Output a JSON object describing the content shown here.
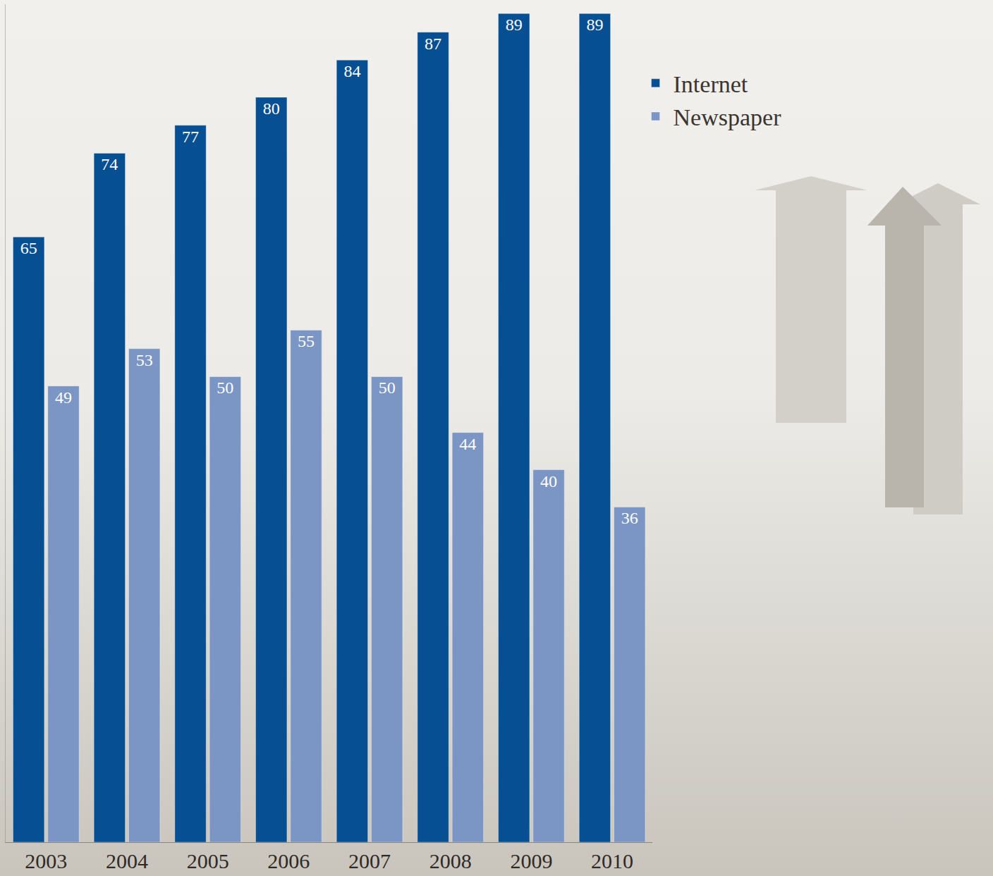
{
  "chart_data": {
    "type": "bar",
    "categories": [
      "2003",
      "2004",
      "2005",
      "2006",
      "2007",
      "2008",
      "2009",
      "2010"
    ],
    "series": [
      {
        "name": "Internet",
        "color": "#064f93",
        "values": [
          65,
          74,
          77,
          80,
          84,
          87,
          89,
          89
        ]
      },
      {
        "name": "Newspaper",
        "color": "#7b96c4",
        "values": [
          49,
          53,
          50,
          55,
          50,
          44,
          40,
          36
        ]
      }
    ],
    "ylim": [
      0,
      90
    ],
    "data_labels": true,
    "tick_labels": "x",
    "grid": false,
    "legend": "upper right"
  }
}
